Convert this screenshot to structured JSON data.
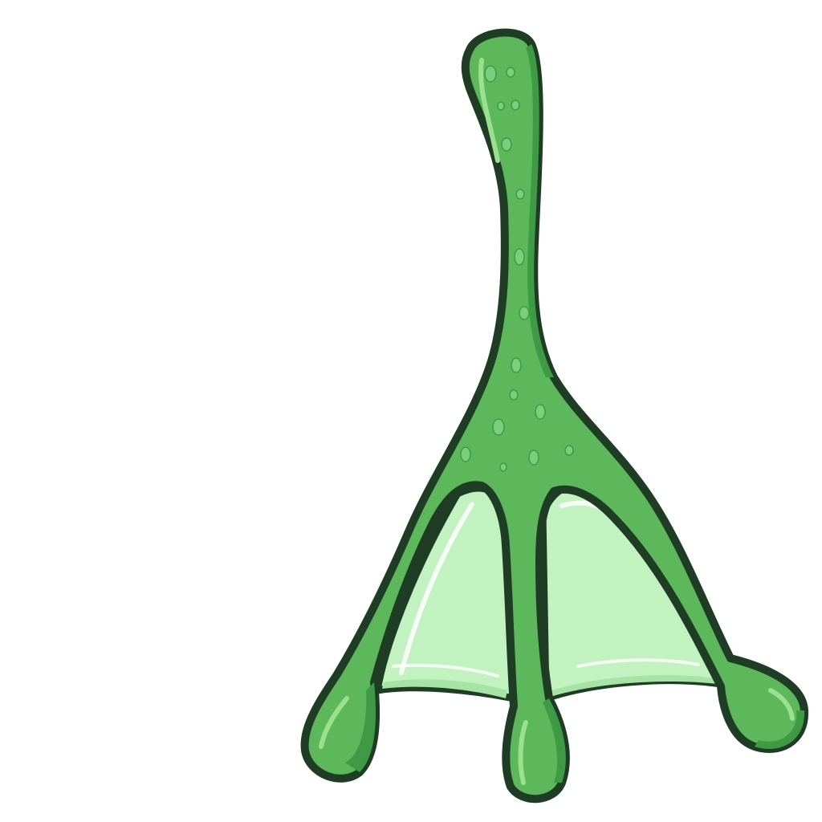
{
  "scene": {
    "subject": "frog-foot",
    "colors": {
      "background": "#ffffff",
      "outline": "#1f3d24",
      "skin": "#5cb85a",
      "skin_shadow": "#3e9a45",
      "skin_highlight": "#9be08f",
      "webbing": "#c2f2c0",
      "webbing_shadow": "#a6e3a4",
      "webbing_highlight": "#ffffff",
      "spots": "#7ad07a"
    }
  }
}
